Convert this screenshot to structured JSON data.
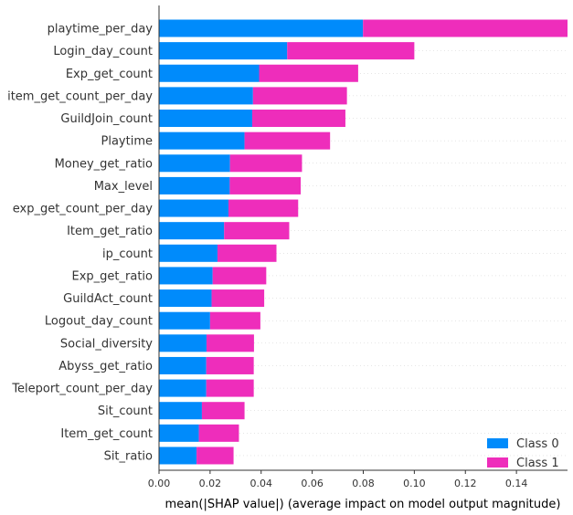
{
  "chart_data": {
    "type": "bar",
    "orientation": "horizontal",
    "stacked": true,
    "categories": [
      "playtime_per_day",
      "Login_day_count",
      "Exp_get_count",
      "item_get_count_per_day",
      "GuildJoin_count",
      "Playtime",
      "Money_get_ratio",
      "Max_level",
      "exp_get_count_per_day",
      "Item_get_ratio",
      "ip_count",
      "Exp_get_ratio",
      "GuildAct_count",
      "Logout_day_count",
      "Social_diversity",
      "Abyss_get_ratio",
      "Teleport_count_per_day",
      "Sit_count",
      "Item_get_count",
      "Sit_ratio"
    ],
    "series": [
      {
        "name": "Class 0",
        "color": "#008bfb",
        "values": [
          0.0799,
          0.0502,
          0.0392,
          0.0368,
          0.0365,
          0.0335,
          0.0278,
          0.0277,
          0.0272,
          0.0255,
          0.0229,
          0.021,
          0.0206,
          0.02,
          0.0186,
          0.0185,
          0.0185,
          0.0168,
          0.0156,
          0.0147
        ]
      },
      {
        "name": "Class 1",
        "color": "#ee2dbb",
        "values": [
          0.0801,
          0.0498,
          0.0388,
          0.0368,
          0.0365,
          0.0335,
          0.0282,
          0.0278,
          0.0273,
          0.0255,
          0.0231,
          0.021,
          0.0206,
          0.0197,
          0.0186,
          0.0186,
          0.0186,
          0.0167,
          0.0157,
          0.0145
        ]
      }
    ],
    "xlabel": "mean(|SHAP value|) (average impact on model output magnitude)",
    "ylabel": "",
    "xlim": [
      0,
      0.16
    ],
    "xticks": [
      "0.00",
      "0.02",
      "0.04",
      "0.06",
      "0.08",
      "0.10",
      "0.12",
      "0.14"
    ],
    "grid": false,
    "legend": {
      "position": "bottom-right",
      "entries": [
        "Class 0",
        "Class 1"
      ]
    }
  }
}
